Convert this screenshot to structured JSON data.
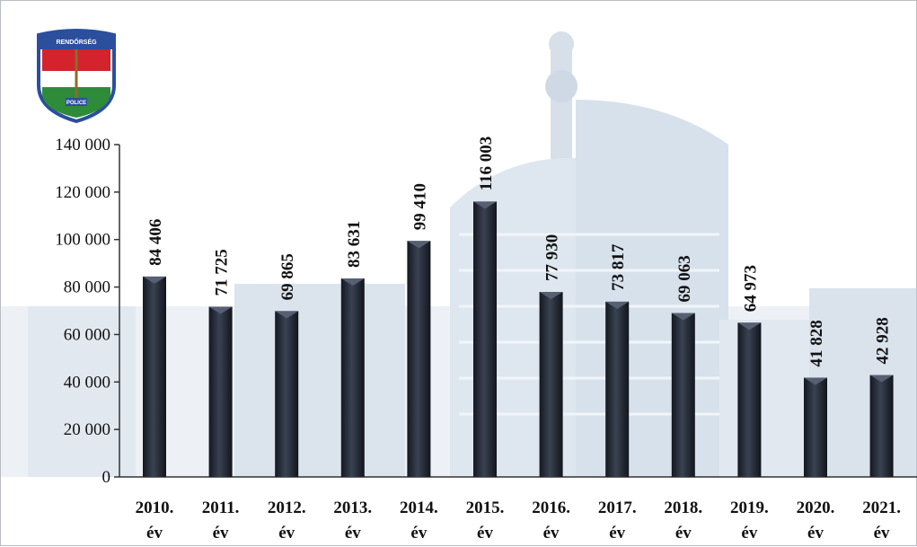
{
  "colors": {
    "bar": "#1f2430",
    "bar_highlight": "#566072",
    "axis": "#333333",
    "background_city": "#cdd9e6",
    "badge_red": "#d4232c",
    "badge_blue": "#2b4f9c",
    "badge_green": "#2e8b3a"
  },
  "logo": {
    "icon": "police-badge-icon",
    "top_text": "RENDŐRSÉG",
    "bottom_text": "POLICE"
  },
  "chart_data": {
    "type": "bar",
    "title": "",
    "xlabel": "",
    "ylabel": "",
    "ylim": [
      0,
      140000
    ],
    "yticks": [
      0,
      20000,
      40000,
      60000,
      80000,
      100000,
      120000,
      140000
    ],
    "ytick_labels": [
      "0",
      "20 000",
      "40 000",
      "60 000",
      "80 000",
      "100 000",
      "120 000",
      "140 000"
    ],
    "grid": false,
    "legend": "none",
    "categories": [
      {
        "year": "2010.",
        "unit": "év"
      },
      {
        "year": "2011.",
        "unit": "év"
      },
      {
        "year": "2012.",
        "unit": "év"
      },
      {
        "year": "2013.",
        "unit": "év"
      },
      {
        "year": "2014.",
        "unit": "év"
      },
      {
        "year": "2015.",
        "unit": "év"
      },
      {
        "year": "2016.",
        "unit": "év"
      },
      {
        "year": "2017.",
        "unit": "év"
      },
      {
        "year": "2018.",
        "unit": "év"
      },
      {
        "year": "2019.",
        "unit": "év"
      },
      {
        "year": "2020.",
        "unit": "év"
      },
      {
        "year": "2021.",
        "unit": "év"
      }
    ],
    "values": [
      84406,
      71725,
      69865,
      83631,
      99410,
      116003,
      77930,
      73817,
      69063,
      64973,
      41828,
      42928
    ],
    "value_labels": [
      "84 406",
      "71 725",
      "69 865",
      "83 631",
      "99 410",
      "116 003",
      "77 930",
      "73 817",
      "69 063",
      "64 973",
      "41 828",
      "42 928"
    ]
  }
}
